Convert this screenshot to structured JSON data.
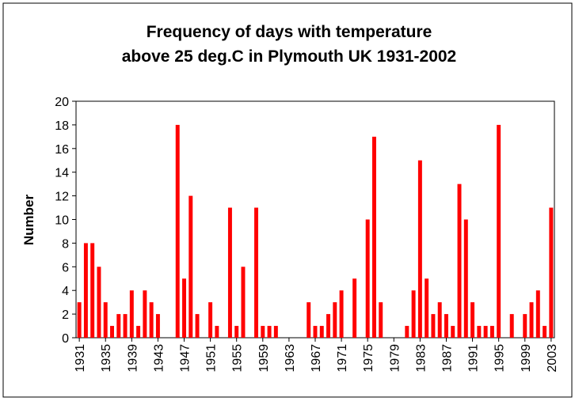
{
  "chart_data": {
    "type": "bar",
    "title": [
      "Frequency of days with temperature",
      "above 25 deg.C in Plymouth UK 1931-2002"
    ],
    "y_label": "Number",
    "categories": [
      "1931",
      null,
      null,
      null,
      "1935",
      null,
      null,
      null,
      "1939",
      null,
      null,
      null,
      "1943",
      null,
      null,
      null,
      "1947",
      null,
      null,
      null,
      "1951",
      null,
      null,
      null,
      "1955",
      null,
      null,
      null,
      "1959",
      null,
      null,
      null,
      "1963",
      null,
      null,
      null,
      "1967",
      null,
      null,
      null,
      "1971",
      null,
      null,
      null,
      "1975",
      null,
      null,
      null,
      "1979",
      null,
      null,
      null,
      "1983",
      null,
      null,
      null,
      "1987",
      null,
      null,
      null,
      "1991",
      null,
      null,
      null,
      "1995",
      null,
      null,
      null,
      "1999",
      null,
      null,
      null,
      "2003"
    ],
    "values": [
      3,
      8,
      8,
      6,
      3,
      1,
      2,
      2,
      4,
      1,
      4,
      3,
      2,
      0,
      0,
      18,
      5,
      12,
      2,
      0,
      3,
      1,
      0,
      11,
      1,
      6,
      0,
      11,
      1,
      1,
      1,
      0,
      0,
      0,
      0,
      3,
      1,
      1,
      2,
      3,
      4,
      0,
      5,
      0,
      10,
      17,
      3,
      0,
      0,
      0,
      1,
      4,
      15,
      5,
      2,
      3,
      2,
      1,
      13,
      10,
      3,
      1,
      1,
      1,
      18,
      0,
      2,
      0,
      2,
      3,
      4,
      1,
      11
    ],
    "color": "#ff0000",
    "ylim": [
      0,
      20
    ],
    "yticks": [
      0,
      2,
      4,
      6,
      8,
      10,
      12,
      14,
      16,
      18,
      20
    ],
    "grid": false
  }
}
